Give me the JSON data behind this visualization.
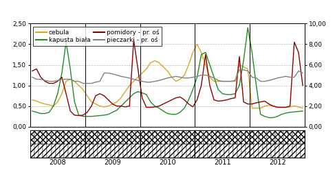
{
  "legend_entries": [
    "cebula",
    "kapusta biała",
    "pomidory - pr. oś",
    "pieczarki - pr. oś"
  ],
  "left_ylim": [
    0.0,
    2.5
  ],
  "right_ylim": [
    0.0,
    10.0
  ],
  "left_yticks": [
    0.0,
    0.5,
    1.0,
    1.5,
    2.0,
    2.5
  ],
  "right_yticks": [
    0.0,
    2.0,
    4.0,
    6.0,
    8.0,
    10.0
  ],
  "left_yticklabels": [
    "0,00",
    "0,50",
    "1,00",
    "1,50",
    "2,00",
    "2,50"
  ],
  "right_yticklabels": [
    "0,00",
    "2,00",
    "4,00",
    "6,00",
    "8,00",
    "10,00"
  ],
  "year_labels": [
    "2008",
    "2009",
    "2010",
    "2011",
    "2012"
  ],
  "n_points": 65,
  "cebula": [
    0.65,
    0.62,
    0.58,
    0.55,
    0.53,
    0.5,
    0.6,
    0.8,
    1.1,
    1.15,
    1.1,
    1.0,
    0.9,
    0.75,
    0.6,
    0.55,
    0.5,
    0.48,
    0.5,
    0.55,
    0.6,
    0.7,
    0.85,
    1.0,
    1.1,
    1.2,
    1.3,
    1.4,
    1.55,
    1.6,
    1.55,
    1.45,
    1.35,
    1.2,
    1.1,
    1.15,
    1.25,
    1.5,
    1.8,
    2.0,
    1.8,
    1.5,
    1.2,
    1.1,
    1.1,
    1.1,
    1.1,
    1.1,
    1.1,
    1.5,
    1.45,
    1.4,
    0.45,
    0.45,
    0.45,
    0.5,
    0.52,
    0.5,
    0.48,
    0.47,
    0.47,
    0.48,
    0.5,
    0.48,
    0.45
  ],
  "kapusta": [
    0.38,
    0.35,
    0.32,
    0.32,
    0.35,
    0.5,
    0.8,
    1.3,
    2.05,
    1.4,
    0.6,
    0.28,
    0.25,
    0.25,
    0.25,
    0.26,
    0.27,
    0.28,
    0.3,
    0.35,
    0.4,
    0.5,
    0.6,
    0.7,
    0.8,
    0.85,
    0.82,
    0.78,
    0.6,
    0.5,
    0.45,
    0.38,
    0.32,
    0.3,
    0.3,
    0.35,
    0.45,
    0.65,
    0.9,
    1.2,
    1.75,
    1.8,
    1.5,
    1.2,
    0.9,
    0.8,
    0.78,
    0.78,
    0.8,
    1.0,
    1.6,
    2.4,
    1.8,
    1.0,
    0.3,
    0.25,
    0.22,
    0.22,
    0.25,
    0.3,
    0.33,
    0.35,
    0.36,
    0.37,
    0.38
  ],
  "pomidory": [
    1.35,
    1.4,
    1.2,
    1.1,
    1.05,
    1.05,
    1.1,
    1.2,
    0.8,
    0.38,
    0.28,
    0.27,
    0.28,
    0.35,
    0.5,
    0.75,
    0.8,
    0.75,
    0.65,
    0.55,
    0.5,
    0.5,
    0.48,
    0.5,
    2.1,
    1.4,
    0.7,
    0.47,
    0.47,
    0.48,
    0.5,
    0.55,
    0.6,
    0.65,
    0.7,
    0.72,
    0.65,
    0.55,
    0.48,
    0.65,
    1.0,
    1.75,
    1.0,
    0.65,
    0.62,
    0.63,
    0.65,
    0.68,
    0.7,
    1.7,
    0.6,
    0.55,
    0.55,
    0.58,
    0.6,
    0.62,
    0.55,
    0.5,
    0.47,
    0.47,
    0.47,
    0.5,
    2.05,
    1.8,
    1.0
  ],
  "pieczarki": [
    1.2,
    1.15,
    1.15,
    1.12,
    1.1,
    1.1,
    1.12,
    1.15,
    1.15,
    1.15,
    1.1,
    1.1,
    1.05,
    1.05,
    1.05,
    1.08,
    1.1,
    1.3,
    1.3,
    1.28,
    1.25,
    1.22,
    1.2,
    1.18,
    1.15,
    1.12,
    1.1,
    1.08,
    1.08,
    1.1,
    1.12,
    1.15,
    1.18,
    1.2,
    1.22,
    1.2,
    1.18,
    1.18,
    1.2,
    1.22,
    1.25,
    1.25,
    1.22,
    1.18,
    1.12,
    1.1,
    1.1,
    1.1,
    1.12,
    1.38,
    1.38,
    1.35,
    1.2,
    1.18,
    1.1,
    1.1,
    1.12,
    1.15,
    1.18,
    1.2,
    1.22,
    1.2,
    1.2,
    1.35,
    1.3
  ],
  "line_colors": [
    "#DAA520",
    "#228B22",
    "#8B0000",
    "#808080"
  ],
  "year_dividers": [
    12.5,
    25.5,
    38.5,
    51.5
  ],
  "year_positions": [
    6.0,
    19.0,
    32.0,
    45.0,
    58.0
  ]
}
